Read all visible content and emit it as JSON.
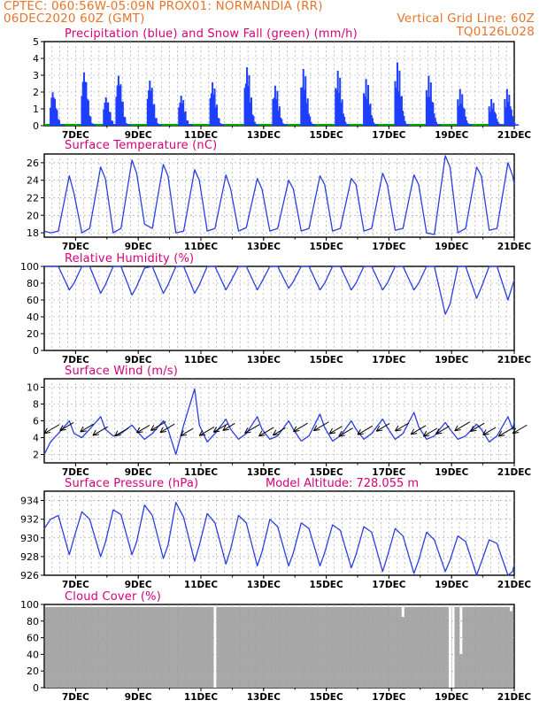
{
  "header": {
    "line1_left": "CPTEC:  060:56W-05:09N  PROX01: NORMANDIA (RR)",
    "line2_left": "06DEC2020 60Z (GMT)",
    "line2_right": "Vertical Grid Line: 60Z",
    "line3_right": "TQ0126L028"
  },
  "colors": {
    "header": "#e8742a",
    "panel_title": "#d4007a",
    "line": "#2b3fe0",
    "bar_blue": "#1f3fff",
    "snow_green": "#00aa00",
    "cloud_gray": "#a8a8a8",
    "grid": "#9a9a9a"
  },
  "x_axis": {
    "day_labels": [
      "7DEC",
      "9DEC",
      "11DEC",
      "13DEC",
      "15DEC",
      "17DEC",
      "19DEC",
      "21DEC"
    ]
  },
  "chart_data": [
    {
      "type": "bar",
      "title": "Precipitation (blue) and Snow Fall (green) (mm/h)",
      "ylim": [
        0,
        5
      ],
      "yticks": [
        "0",
        "1",
        "2",
        "3",
        "4",
        "5"
      ],
      "x_label_days": [
        "7DEC",
        "9DEC",
        "11DEC",
        "13DEC",
        "15DEC",
        "17DEC",
        "19DEC",
        "21DEC"
      ],
      "series": [
        {
          "name": "Precipitation",
          "color": "blue",
          "events": [
            {
              "day": 6.4,
              "peak": 2.0
            },
            {
              "day": 7.4,
              "peak": 3.2
            },
            {
              "day": 8.1,
              "peak": 1.7
            },
            {
              "day": 8.5,
              "peak": 3.0
            },
            {
              "day": 9.5,
              "peak": 2.7
            },
            {
              "day": 10.5,
              "peak": 1.8
            },
            {
              "day": 11.5,
              "peak": 2.6
            },
            {
              "day": 12.6,
              "peak": 3.5
            },
            {
              "day": 13.5,
              "peak": 2.4
            },
            {
              "day": 14.4,
              "peak": 3.4
            },
            {
              "day": 15.5,
              "peak": 3.3
            },
            {
              "day": 16.4,
              "peak": 2.8
            },
            {
              "day": 17.4,
              "peak": 3.8
            },
            {
              "day": 18.4,
              "peak": 3.0
            },
            {
              "day": 19.4,
              "peak": 2.2
            },
            {
              "day": 20.4,
              "peak": 1.6
            },
            {
              "day": 20.9,
              "peak": 2.2
            }
          ]
        },
        {
          "name": "Snow Fall",
          "color": "green",
          "constant": 0
        }
      ]
    },
    {
      "type": "line",
      "title": "Surface Temperature (nC)",
      "ylim": [
        17.5,
        27
      ],
      "yticks": [
        "18",
        "20",
        "22",
        "24",
        "26"
      ],
      "x_label_days": [
        "7DEC",
        "9DEC",
        "11DEC",
        "13DEC",
        "15DEC",
        "17DEC",
        "19DEC",
        "21DEC"
      ],
      "series": [
        {
          "name": "Surface Temperature",
          "x": [
            6.0,
            6.2,
            6.45,
            6.8,
            6.95,
            7.2,
            7.45,
            7.8,
            7.95,
            8.2,
            8.45,
            8.8,
            8.95,
            9.2,
            9.45,
            9.8,
            9.95,
            10.2,
            10.45,
            10.8,
            10.95,
            11.2,
            11.45,
            11.8,
            11.95,
            12.2,
            12.45,
            12.8,
            12.95,
            13.2,
            13.45,
            13.8,
            13.95,
            14.2,
            14.45,
            14.8,
            14.95,
            15.2,
            15.45,
            15.8,
            15.95,
            16.2,
            16.45,
            16.8,
            16.95,
            17.2,
            17.45,
            17.8,
            17.95,
            18.2,
            18.45,
            18.8,
            18.95,
            19.2,
            19.45,
            19.8,
            19.95,
            20.2,
            20.45,
            20.8,
            20.95,
            21.0
          ],
          "values": [
            18.2,
            18.0,
            18.2,
            24.5,
            22.5,
            18.0,
            18.5,
            25.5,
            24.2,
            18.0,
            18.5,
            26.3,
            24.8,
            19.0,
            18.5,
            25.8,
            24.5,
            18.0,
            18.2,
            25.2,
            24.0,
            18.2,
            18.5,
            24.6,
            23.0,
            18.2,
            18.6,
            24.2,
            23.0,
            18.2,
            18.5,
            24.0,
            23.0,
            18.2,
            18.5,
            24.5,
            23.5,
            18.2,
            18.5,
            24.2,
            23.5,
            18.2,
            18.5,
            24.8,
            23.5,
            18.3,
            18.5,
            24.6,
            23.5,
            18.0,
            17.8,
            26.8,
            25.5,
            18.0,
            18.5,
            25.5,
            24.5,
            18.3,
            18.5,
            26.0,
            24.5,
            23.5
          ]
        }
      ]
    },
    {
      "type": "line",
      "title": "Relative Humidity (%)",
      "ylim": [
        0,
        100
      ],
      "yticks": [
        "0",
        "20",
        "40",
        "60",
        "80",
        "100"
      ],
      "x_label_days": [
        "7DEC",
        "9DEC",
        "11DEC",
        "13DEC",
        "15DEC",
        "17DEC",
        "19DEC",
        "21DEC"
      ],
      "series": [
        {
          "name": "Relative Humidity",
          "x": [
            6.0,
            6.2,
            6.45,
            6.8,
            6.95,
            7.2,
            7.45,
            7.8,
            7.95,
            8.2,
            8.45,
            8.8,
            8.95,
            9.2,
            9.45,
            9.8,
            9.95,
            10.2,
            10.45,
            10.8,
            10.95,
            11.2,
            11.45,
            11.8,
            11.95,
            12.2,
            12.45,
            12.8,
            12.95,
            13.2,
            13.45,
            13.8,
            13.95,
            14.2,
            14.45,
            14.8,
            14.95,
            15.2,
            15.45,
            15.8,
            15.95,
            16.2,
            16.45,
            16.8,
            16.95,
            17.2,
            17.45,
            17.8,
            17.95,
            18.2,
            18.45,
            18.8,
            18.95,
            19.2,
            19.45,
            19.8,
            19.95,
            20.2,
            20.45,
            20.8,
            20.95,
            21.0
          ],
          "values": [
            100,
            100,
            100,
            72,
            80,
            100,
            100,
            68,
            78,
            100,
            100,
            66,
            76,
            98,
            100,
            68,
            78,
            100,
            100,
            68,
            78,
            100,
            100,
            72,
            82,
            100,
            100,
            72,
            82,
            100,
            100,
            74,
            82,
            100,
            100,
            72,
            80,
            100,
            100,
            72,
            80,
            100,
            100,
            72,
            80,
            100,
            100,
            72,
            80,
            100,
            100,
            43,
            55,
            100,
            100,
            62,
            75,
            100,
            100,
            60,
            78,
            84
          ]
        }
      ]
    },
    {
      "type": "line",
      "title": "Surface Wind (m/s)",
      "ylim": [
        1,
        11
      ],
      "yticks": [
        "2",
        "4",
        "6",
        "8",
        "10"
      ],
      "x_label_days": [
        "7DEC",
        "9DEC",
        "11DEC",
        "13DEC",
        "15DEC",
        "17DEC",
        "19DEC",
        "21DEC"
      ],
      "series": [
        {
          "name": "Wind Speed",
          "x": [
            6.0,
            6.2,
            6.45,
            6.8,
            6.95,
            7.2,
            7.45,
            7.8,
            7.95,
            8.2,
            8.45,
            8.8,
            8.95,
            9.2,
            9.45,
            9.8,
            9.95,
            10.2,
            10.45,
            10.8,
            10.95,
            11.2,
            11.45,
            11.8,
            11.95,
            12.2,
            12.45,
            12.8,
            12.95,
            13.2,
            13.45,
            13.8,
            13.95,
            14.2,
            14.45,
            14.8,
            14.95,
            15.2,
            15.45,
            15.8,
            15.95,
            16.2,
            16.45,
            16.8,
            16.95,
            17.2,
            17.45,
            17.8,
            17.95,
            18.2,
            18.45,
            18.8,
            18.95,
            19.2,
            19.45,
            19.8,
            19.95,
            20.2,
            20.45,
            20.8,
            20.95,
            21.0
          ],
          "values": [
            2.0,
            3.5,
            4.5,
            6.0,
            4.5,
            4.0,
            5.0,
            6.5,
            5.0,
            4.2,
            4.5,
            5.5,
            4.8,
            3.8,
            4.5,
            6.0,
            5.0,
            2.0,
            5.5,
            9.8,
            5.5,
            3.5,
            4.5,
            6.2,
            5.0,
            3.8,
            4.5,
            6.5,
            5.0,
            3.8,
            4.2,
            6.0,
            5.0,
            3.6,
            4.2,
            6.8,
            5.2,
            3.6,
            4.2,
            6.0,
            5.0,
            3.8,
            4.5,
            6.2,
            5.2,
            3.8,
            4.5,
            7.0,
            5.3,
            3.8,
            4.2,
            5.8,
            5.0,
            3.8,
            4.2,
            5.6,
            5.0,
            3.5,
            4.2,
            6.5,
            5.0,
            5.9
          ]
        }
      ],
      "wind_arrows_days": [
        6.0,
        6.5,
        7.15,
        7.55,
        8.25,
        8.95,
        9.4,
        9.7,
        10.35,
        10.95,
        11.4,
        11.7,
        12.4,
        12.85,
        13.3,
        13.95,
        14.6,
        15.1,
        15.4,
        16.0,
        16.6,
        17.2,
        17.7,
        18.1,
        18.5,
        19.1,
        19.6,
        20.0,
        20.5,
        20.95
      ]
    },
    {
      "type": "line",
      "title": "Surface Pressure (hPa)",
      "subtitle": "Model Altitude: 728.055 m",
      "ylim": [
        926,
        935
      ],
      "yticks": [
        "926",
        "928",
        "930",
        "932",
        "934"
      ],
      "x_label_days": [
        "7DEC",
        "9DEC",
        "11DEC",
        "13DEC",
        "15DEC",
        "17DEC",
        "19DEC",
        "21DEC"
      ],
      "series": [
        {
          "name": "Surface Pressure",
          "x": [
            6.0,
            6.2,
            6.45,
            6.8,
            6.95,
            7.2,
            7.45,
            7.8,
            7.95,
            8.2,
            8.45,
            8.8,
            8.95,
            9.2,
            9.45,
            9.8,
            9.95,
            10.2,
            10.45,
            10.8,
            10.95,
            11.2,
            11.45,
            11.8,
            11.95,
            12.2,
            12.45,
            12.8,
            12.95,
            13.2,
            13.45,
            13.8,
            13.95,
            14.2,
            14.45,
            14.8,
            14.95,
            15.2,
            15.45,
            15.8,
            15.95,
            16.2,
            16.45,
            16.8,
            16.95,
            17.2,
            17.45,
            17.8,
            17.95,
            18.2,
            18.45,
            18.8,
            18.95,
            19.2,
            19.45,
            19.8,
            19.95,
            20.2,
            20.45,
            20.8,
            20.95,
            21.0
          ],
          "values": [
            931.0,
            932.0,
            932.4,
            928.2,
            930.0,
            932.8,
            932.0,
            928.0,
            929.5,
            933.0,
            932.5,
            928.2,
            929.6,
            933.5,
            932.4,
            927.8,
            929.2,
            933.8,
            932.2,
            927.5,
            929.2,
            932.6,
            931.6,
            927.2,
            928.8,
            932.4,
            931.6,
            927.0,
            928.5,
            932.0,
            931.2,
            927.0,
            928.4,
            931.6,
            931.0,
            927.0,
            928.4,
            931.4,
            930.8,
            926.8,
            928.2,
            931.2,
            930.6,
            926.4,
            928.0,
            931.0,
            930.2,
            926.2,
            927.6,
            930.6,
            929.8,
            926.4,
            927.6,
            930.2,
            929.6,
            926.0,
            927.4,
            929.8,
            929.4,
            926.0,
            926.4,
            927.2
          ]
        }
      ]
    },
    {
      "type": "bar",
      "title": "Cloud Cover (%)",
      "ylim": [
        0,
        100
      ],
      "yticks": [
        "0",
        "20",
        "40",
        "60",
        "80",
        "100"
      ],
      "x_label_days": [
        "7DEC",
        "9DEC",
        "11DEC",
        "13DEC",
        "15DEC",
        "17DEC",
        "19DEC",
        "21DEC"
      ],
      "series": [
        {
          "name": "Cloud Cover",
          "baseline": 97,
          "dips": [
            {
              "day": 11.45,
              "value": 0
            },
            {
              "day": 17.45,
              "value": 85
            },
            {
              "day": 18.95,
              "value": 0
            },
            {
              "day": 19.05,
              "value": 0
            },
            {
              "day": 19.3,
              "value": 40
            },
            {
              "day": 20.9,
              "value": 92
            }
          ]
        }
      ]
    }
  ]
}
